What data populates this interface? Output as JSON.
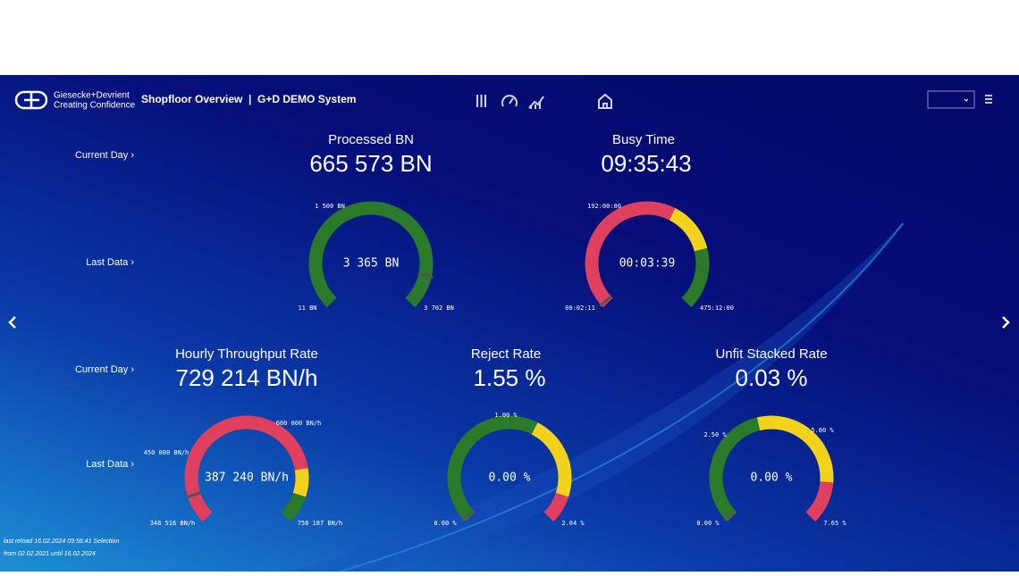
{
  "header": {
    "brand_name": "Giesecke+Devrient",
    "brand_tagline": "Creating Confidence",
    "title": "Shopfloor Overview  |  G+D DEMO System"
  },
  "row_labels": [
    "Current Day ›",
    "Last Data ›",
    "Current Day ›",
    "Last Data ›"
  ],
  "gauges": [
    {
      "title": "Processed BN",
      "value": "665 573 BN",
      "center": "3 365 BN",
      "labels": [
        "1 500 BN",
        "11 BN",
        "3 702 BN"
      ]
    },
    {
      "title": "Busy Time",
      "value": "09:35:43",
      "center": "00:03:39",
      "labels": [
        "192:00:00",
        "00:02:11",
        "475:12:00"
      ]
    },
    {
      "title": "Hourly Throughput Rate",
      "value": "729 214 BN/h",
      "center": "387 240 BN/h",
      "labels": [
        "600 000 BN/h",
        "450 000 BN/h",
        "348 516 BN/h",
        "758 187 BN/h"
      ]
    },
    {
      "title": "Reject Rate",
      "value": "1.55 %",
      "center": "0.00 %",
      "labels": [
        "1.00 %",
        "0.00 %",
        "2.04 %"
      ]
    },
    {
      "title": "Unfit Stacked Rate",
      "value": "0.03 %",
      "center": "0.00 %",
      "labels": [
        "2.50 %",
        "5.00 %",
        "0.00 %",
        "7.65 %"
      ]
    }
  ],
  "footer": {
    "line1": "last reload 16.02.2024 09:56:41 Selection",
    "line2": "from 02.02.2021 until 16.02.2024"
  }
}
